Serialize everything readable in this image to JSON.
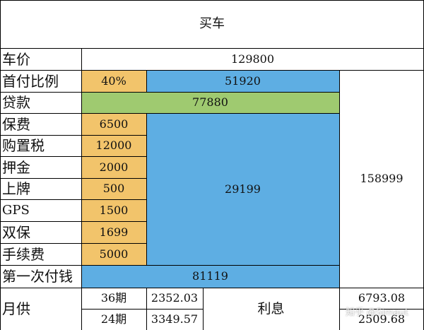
{
  "title": "买车",
  "rows": {
    "car_price": {
      "label": "车价",
      "value": "129800"
    },
    "down_ratio": {
      "label": "首付比例",
      "percent": "40%",
      "value": "51920"
    },
    "loan": {
      "label": "贷款",
      "value": "77880"
    },
    "insurance": {
      "label": "保费",
      "value": "6500"
    },
    "purchase_tax": {
      "label": "购置税",
      "value": "12000"
    },
    "deposit": {
      "label": "押金",
      "value": "2000"
    },
    "plate": {
      "label": "上牌",
      "value": "500"
    },
    "gps": {
      "label": "GPS",
      "value": "1500"
    },
    "dual_ins": {
      "label": "双保",
      "value": "1699"
    },
    "fee": {
      "label": "手续费",
      "value": "5000"
    },
    "first_pay": {
      "label": "第一次付钱",
      "value": "81119"
    }
  },
  "fees_subtotal": "29199",
  "grand_total": "158999",
  "monthly": {
    "label": "月供",
    "plans": [
      {
        "period": "36期",
        "amount": "2352.03",
        "interest": "6793.08"
      },
      {
        "period": "24期",
        "amount": "3349.57",
        "interest": "2509.68"
      }
    ],
    "interest_label": "利息"
  },
  "colors": {
    "orange": "#f2c46b",
    "blue": "#5eaee3",
    "green": "#9fca70"
  },
  "watermark": "知乎 @Simaut"
}
